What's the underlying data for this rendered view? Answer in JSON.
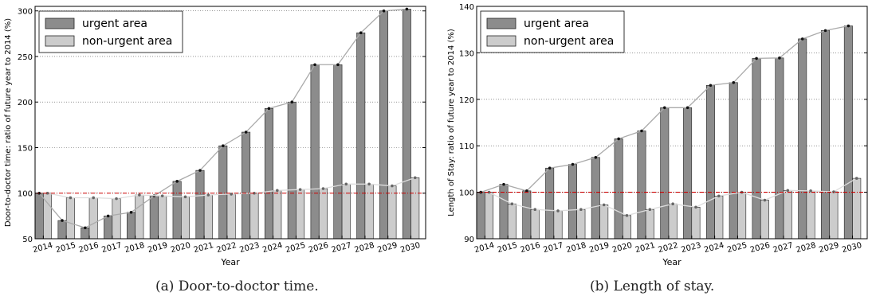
{
  "chart_data": [
    {
      "type": "bar",
      "ylabel": "Door-to-doctor time: ratio of future year to 2014 (%)",
      "xlabel": "Year",
      "ylim": [
        50,
        305
      ],
      "yticks": [
        50,
        100,
        150,
        200,
        250,
        300
      ],
      "reference_line": 100,
      "grid": "horizontal dotted",
      "legend_position": "top-left",
      "categories": [
        "2014",
        "2015",
        "2016",
        "2017",
        "2018",
        "2019",
        "2020",
        "2021",
        "2022",
        "2023",
        "2024",
        "2025",
        "2026",
        "2027",
        "2028",
        "2029",
        "2030"
      ],
      "series": [
        {
          "name": "urgent area",
          "color": "#8c8c8c",
          "values": [
            100,
            70,
            62,
            75,
            79,
            97,
            113,
            125,
            152,
            167,
            193,
            200,
            241,
            241,
            276,
            300,
            302
          ]
        },
        {
          "name": "non-urgent area",
          "color": "#cccccc",
          "values": [
            100,
            95,
            95,
            94,
            98,
            97,
            96,
            98,
            99,
            100,
            103,
            104,
            105,
            110,
            110,
            108,
            117
          ]
        }
      ],
      "caption": "(a) Door-to-doctor time."
    },
    {
      "type": "bar",
      "ylabel": "Length of Stay: ratio of future year to 2014 (%)",
      "xlabel": "Year",
      "ylim": [
        90,
        140
      ],
      "yticks": [
        90,
        100,
        110,
        120,
        130,
        140
      ],
      "reference_line": 100,
      "grid": "horizontal dotted",
      "legend_position": "top-left",
      "categories": [
        "2014",
        "2015",
        "2016",
        "2017",
        "2018",
        "2019",
        "2020",
        "2021",
        "2022",
        "2023",
        "2024",
        "2025",
        "2026",
        "2027",
        "2028",
        "2029",
        "2030"
      ],
      "series": [
        {
          "name": "urgent area",
          "color": "#8c8c8c",
          "values": [
            100,
            101.7,
            100.3,
            105.2,
            106,
            107.5,
            111.5,
            113.2,
            118.2,
            118.2,
            123,
            123.6,
            128.8,
            128.9,
            133,
            134.8,
            135.8
          ]
        },
        {
          "name": "non-urgent area",
          "color": "#cccccc",
          "values": [
            100,
            97.5,
            96.3,
            96,
            96.3,
            97.3,
            95,
            96.3,
            97.5,
            96.8,
            99.2,
            100,
            98.3,
            100.4,
            100.3,
            100.1,
            103
          ]
        }
      ],
      "caption": "(b) Length of stay."
    }
  ]
}
